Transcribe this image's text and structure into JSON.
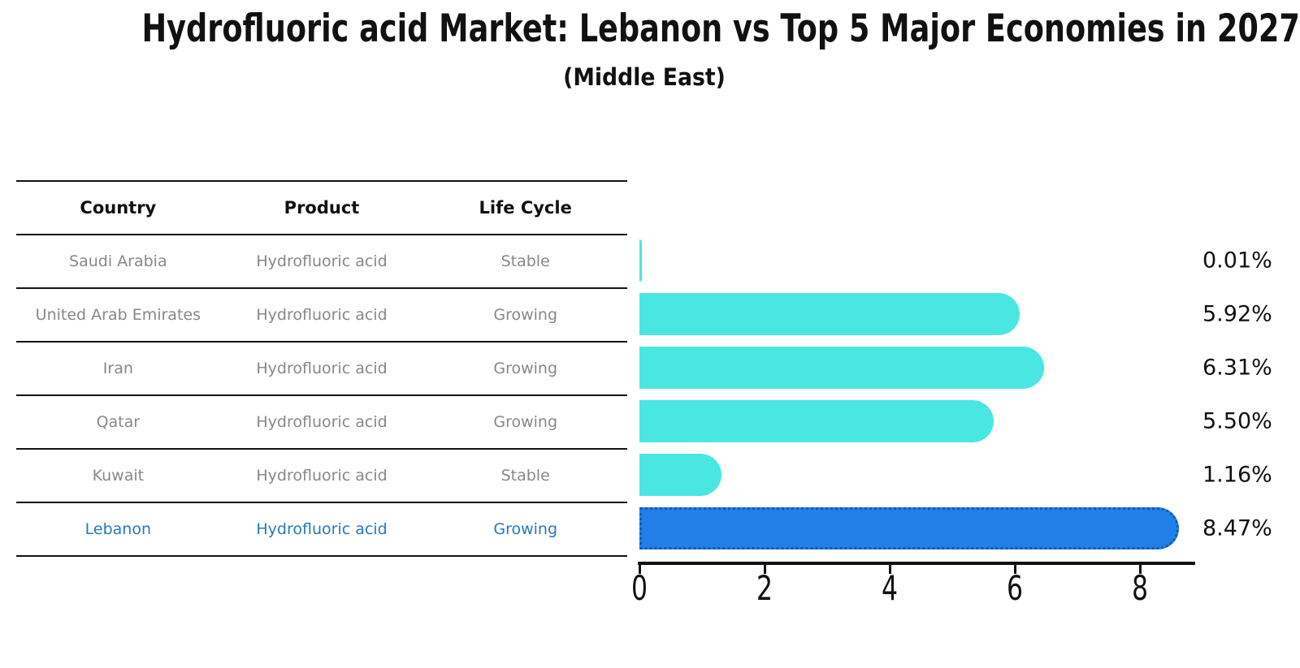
{
  "title": "Hydrofluoric acid Market: Lebanon vs Top 5 Major Economies in 2027",
  "subtitle": "(Middle East)",
  "table": {
    "headers": [
      "Country",
      "Product",
      "Life Cycle"
    ],
    "rows": [
      {
        "country": "Saudi Arabia",
        "product": "Hydrofluoric acid",
        "life_cycle": "Stable",
        "highlighted": false
      },
      {
        "country": "United Arab Emirates",
        "product": "Hydrofluoric acid",
        "life_cycle": "Growing",
        "highlighted": false
      },
      {
        "country": "Iran",
        "product": "Hydrofluoric acid",
        "life_cycle": "Growing",
        "highlighted": false
      },
      {
        "country": "Qatar",
        "product": "Hydrofluoric acid",
        "life_cycle": "Growing",
        "highlighted": false
      },
      {
        "country": "Kuwait",
        "product": "Hydrofluoric acid",
        "life_cycle": "Stable",
        "highlighted": false
      },
      {
        "country": "Lebanon",
        "product": "Hydrofluoric acid",
        "life_cycle": "Growing",
        "highlighted": true
      }
    ]
  },
  "chart_data": {
    "type": "bar",
    "orientation": "horizontal",
    "title": "Hydrofluoric acid Market: Lebanon vs Top 5 Major Economies in 2027",
    "subtitle": "(Middle East)",
    "categories": [
      "Saudi Arabia",
      "United Arab Emirates",
      "Iran",
      "Qatar",
      "Kuwait",
      "Lebanon"
    ],
    "values": [
      0.01,
      5.92,
      6.31,
      5.5,
      1.16,
      8.47
    ],
    "value_labels": [
      "0.01%",
      "5.92%",
      "6.31%",
      "5.50%",
      "1.16%",
      "8.47%"
    ],
    "unit": "%",
    "x_ticks": [
      0,
      2,
      4,
      6,
      8
    ],
    "xlim": [
      0,
      8.9
    ],
    "grid": false,
    "legend": false,
    "bar_color": "#4AE7E2",
    "highlight_index": 5,
    "highlight_color": "#2080E8",
    "highlight_border_color": "#1459B3"
  },
  "colors": {
    "background": "#FFFFFF",
    "heading_text": "#111111",
    "table_text": "#888888",
    "highlight_text": "#2679BD",
    "axis": "#111111"
  }
}
